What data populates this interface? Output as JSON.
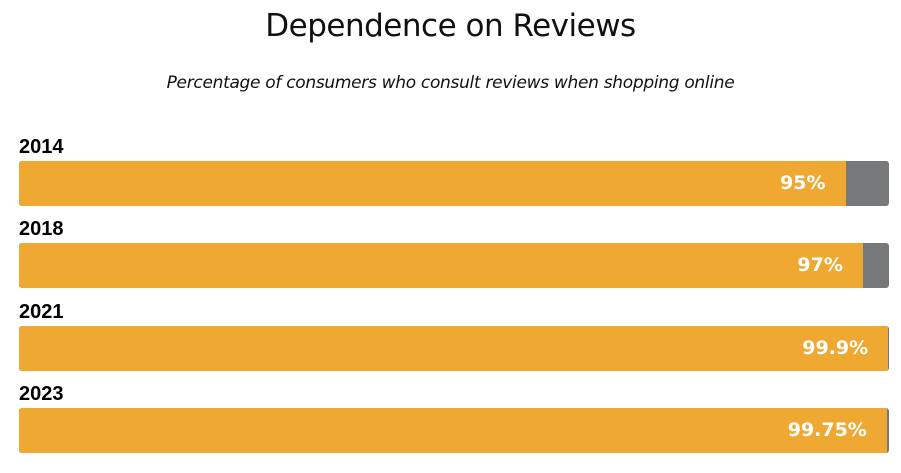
{
  "chart_data": {
    "type": "bar",
    "orientation": "horizontal",
    "title": "Dependence on Reviews",
    "subtitle": "Percentage of consumers who consult reviews when shopping online",
    "xlabel": "",
    "ylabel": "",
    "xlim": [
      0,
      100
    ],
    "grid": false,
    "legend": null,
    "categories": [
      "2014",
      "2018",
      "2021",
      "2023"
    ],
    "values": [
      95,
      97,
      99.9,
      99.75
    ],
    "value_labels": [
      "95%",
      "97%",
      "99.9%",
      "99.75%"
    ],
    "colors": {
      "fill": "#efa831",
      "remainder": "#76787a",
      "label": "#ffffff"
    }
  },
  "header": {
    "title": "Dependence on Reviews",
    "subtitle": "Percentage of consumers who consult reviews when shopping online"
  },
  "bars": [
    {
      "year": "2014",
      "value": 95,
      "label": "95%"
    },
    {
      "year": "2018",
      "value": 97,
      "label": "97%"
    },
    {
      "year": "2021",
      "value": 99.9,
      "label": "99.9%"
    },
    {
      "year": "2023",
      "value": 99.75,
      "label": "99.75%"
    }
  ]
}
